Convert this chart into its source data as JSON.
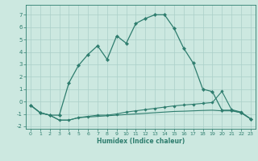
{
  "xlabel": "Humidex (Indice chaleur)",
  "bg_color": "#cce8e0",
  "line_color": "#2e7d6e",
  "grid_color": "#aacfc8",
  "xlim_min": -0.5,
  "xlim_max": 23.5,
  "ylim_min": -2.2,
  "ylim_max": 7.8,
  "xticks": [
    0,
    1,
    2,
    3,
    4,
    5,
    6,
    7,
    8,
    9,
    10,
    11,
    12,
    13,
    14,
    15,
    16,
    17,
    18,
    19,
    20,
    21,
    22,
    23
  ],
  "yticks": [
    -2,
    -1,
    0,
    1,
    2,
    3,
    4,
    5,
    6,
    7
  ],
  "series1_x": [
    0,
    1,
    2,
    3,
    4,
    5,
    6,
    7,
    8,
    9,
    10,
    11,
    12,
    13,
    14,
    15,
    16,
    17,
    18,
    19,
    20,
    21,
    22,
    23
  ],
  "series1_y": [
    -0.3,
    -0.9,
    -1.1,
    -1.1,
    1.5,
    2.9,
    3.8,
    4.5,
    3.4,
    5.3,
    4.7,
    6.3,
    6.7,
    7.0,
    7.0,
    5.9,
    4.3,
    3.1,
    1.0,
    0.8,
    -0.7,
    -0.7,
    -0.9,
    -1.4
  ],
  "series2_x": [
    0,
    1,
    2,
    3,
    4,
    5,
    6,
    7,
    8,
    9,
    10,
    11,
    12,
    13,
    14,
    15,
    16,
    17,
    18,
    19,
    20,
    21,
    22,
    23
  ],
  "series2_y": [
    -0.3,
    -0.9,
    -1.1,
    -1.5,
    -1.5,
    -1.3,
    -1.2,
    -1.1,
    -1.1,
    -1.0,
    -0.85,
    -0.75,
    -0.65,
    -0.55,
    -0.45,
    -0.35,
    -0.28,
    -0.22,
    -0.15,
    -0.08,
    0.82,
    -0.65,
    -0.85,
    -1.4
  ],
  "series3_x": [
    0,
    1,
    2,
    3,
    4,
    5,
    6,
    7,
    8,
    9,
    10,
    11,
    12,
    13,
    14,
    15,
    16,
    17,
    18,
    19,
    20,
    21,
    22,
    23
  ],
  "series3_y": [
    -0.3,
    -0.9,
    -1.1,
    -1.5,
    -1.5,
    -1.3,
    -1.25,
    -1.2,
    -1.15,
    -1.1,
    -1.05,
    -1.0,
    -0.95,
    -0.9,
    -0.85,
    -0.8,
    -0.78,
    -0.75,
    -0.72,
    -0.7,
    -0.75,
    -0.75,
    -0.9,
    -1.4
  ]
}
